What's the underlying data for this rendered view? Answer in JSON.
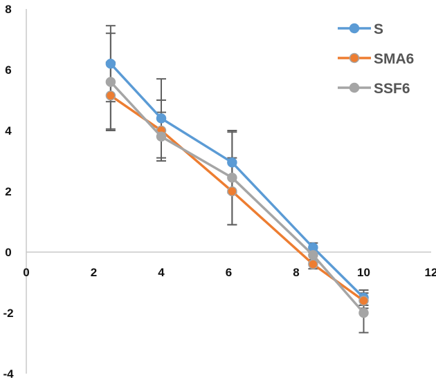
{
  "chart_data": {
    "type": "line",
    "title": "",
    "xlabel": "",
    "ylabel": "",
    "xlim": [
      0,
      12
    ],
    "ylim": [
      -4,
      8
    ],
    "x_ticks": [
      "0",
      "2",
      "4",
      "6",
      "8",
      "10",
      "12"
    ],
    "y_ticks": [
      "8",
      "6",
      "4",
      "2",
      "0",
      "-2",
      "-4"
    ],
    "grid": false,
    "legend_position": "top-right",
    "x": [
      2.5,
      4,
      6.1,
      8.5,
      10
    ],
    "series": [
      {
        "name": "S",
        "color": "#5B9BD5",
        "values": [
          6.2,
          4.4,
          2.95,
          0.15,
          -1.5
        ],
        "error": [
          1.25,
          1.3,
          1.0,
          0.15,
          0.25
        ]
      },
      {
        "name": "SMA6",
        "color": "#ED7D31",
        "values": [
          5.15,
          4.0,
          2.0,
          -0.4,
          -1.6
        ],
        "error": [
          1.1,
          1.0,
          1.1,
          0.15,
          0.25
        ]
      },
      {
        "name": "SSF6",
        "color": "#A5A5A5",
        "values": [
          5.6,
          3.8,
          2.45,
          -0.1,
          -2.0
        ],
        "error": [
          1.6,
          0.8,
          1.55,
          0.25,
          0.65
        ]
      }
    ]
  },
  "legend": {
    "items": [
      {
        "label": "S",
        "color": "#5B9BD5"
      },
      {
        "label": "SMA6",
        "color": "#ED7D31"
      },
      {
        "label": "SSF6",
        "color": "#A5A5A5"
      }
    ]
  },
  "colors": {
    "axis": "#C8C8C8",
    "errorbar": "#5F5F5F"
  }
}
